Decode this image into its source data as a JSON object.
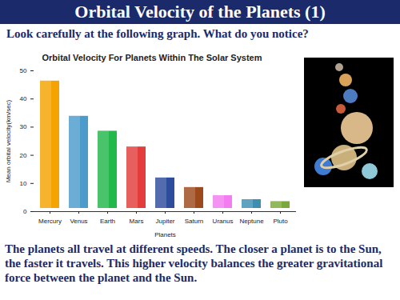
{
  "slide": {
    "heading": "Orbital Velocity of the Planets (1)",
    "prompt": "Look carefully at the following graph. What do you notice?",
    "caption": "The planets all travel at different speeds. The closer a planet is to the Sun, the faster it travels. This higher velocity balances the greater gravitational force between the planet and the Sun."
  },
  "chart_data": {
    "type": "bar",
    "title": "Orbital Velocity For Planets Within The Solar System",
    "x_label": "Planets",
    "y_label": "Mean orbital velocity(km/sec)",
    "categories": [
      "Mercury",
      "Venus",
      "Earth",
      "Mars",
      "Jupiter",
      "Saturn",
      "Uranus",
      "Neptune",
      "Pluto"
    ],
    "values": [
      47.5,
      35.0,
      29.7,
      24.1,
      13.1,
      9.7,
      6.8,
      5.4,
      4.7
    ],
    "colors": [
      "#f5a300",
      "#4b9ccb",
      "#22b84a",
      "#e23d3a",
      "#2d4c9b",
      "#9c4a1c",
      "#f27cf0",
      "#3d8fb2",
      "#7aa83a"
    ],
    "ylim": [
      0,
      50
    ],
    "yticks": [
      0,
      10,
      20,
      30,
      40,
      50
    ],
    "grid": false
  }
}
